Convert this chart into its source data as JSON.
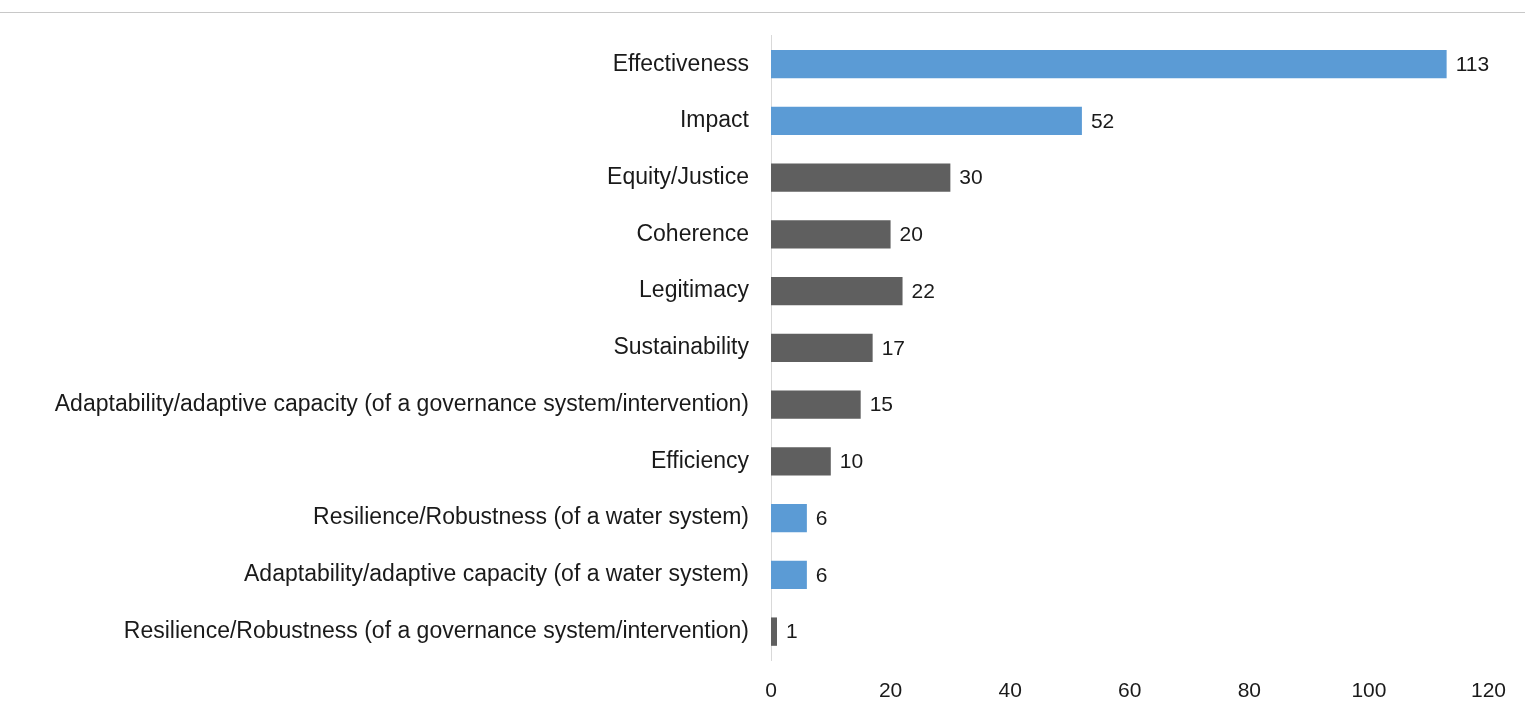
{
  "chart_data": {
    "type": "bar",
    "orientation": "horizontal",
    "categories": [
      "Effectiveness",
      "Impact",
      "Equity/Justice",
      "Coherence",
      "Legitimacy",
      "Sustainability",
      "Adaptability/adaptive capacity (of a governance system/intervention)",
      "Efficiency",
      "Resilience/Robustness (of a water system)",
      "Adaptability/adaptive capacity (of a water system)",
      "Resilience/Robustness (of a governance system/intervention)"
    ],
    "values": [
      113,
      52,
      30,
      20,
      22,
      17,
      15,
      10,
      6,
      6,
      1
    ],
    "colors": [
      "#5b9bd5",
      "#5b9bd5",
      "#5f5f5f",
      "#5f5f5f",
      "#5f5f5f",
      "#5f5f5f",
      "#5f5f5f",
      "#5f5f5f",
      "#5b9bd5",
      "#5b9bd5",
      "#5f5f5f"
    ],
    "xlim": [
      0,
      120
    ],
    "xticks": [
      0,
      20,
      40,
      60,
      80,
      100,
      120
    ],
    "data_labels": true
  }
}
